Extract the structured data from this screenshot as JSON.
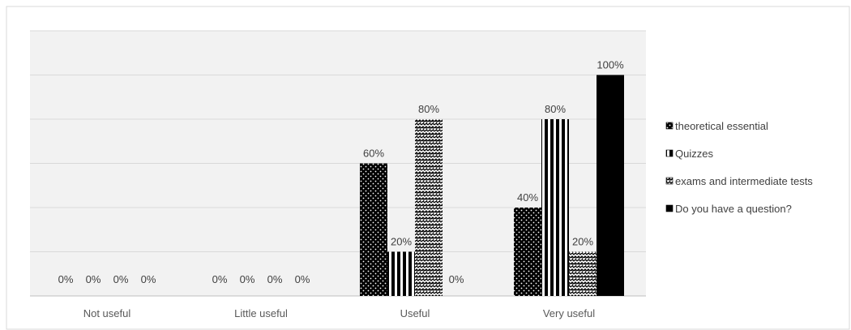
{
  "chart_data": {
    "type": "bar",
    "categories": [
      "Not useful",
      "Little useful",
      "Useful",
      "Very useful"
    ],
    "series": [
      {
        "name": "theoretical essential",
        "values": [
          0,
          0,
          60,
          40
        ],
        "labels": [
          "0%",
          "0%",
          "60%",
          "40%"
        ],
        "pattern": "dots"
      },
      {
        "name": "Quizzes",
        "values": [
          0,
          0,
          20,
          80
        ],
        "labels": [
          "0%",
          "0%",
          "20%",
          "80%"
        ],
        "pattern": "vstripes"
      },
      {
        "name": "exams and intermediate tests",
        "values": [
          0,
          0,
          80,
          20
        ],
        "labels": [
          "0%",
          "0%",
          "80%",
          "20%"
        ],
        "pattern": "zigzag"
      },
      {
        "name": "Do you have a question?",
        "values": [
          0,
          0,
          0,
          100
        ],
        "labels": [
          "0%",
          "0%",
          "0%",
          "100%"
        ],
        "pattern": "solid"
      }
    ],
    "ylim": [
      0,
      120
    ],
    "gridlines": true,
    "legend_position": "right",
    "plot_background": "#f2f2f2",
    "grid_color": "#d9d9d9",
    "bar_color": "#000000"
  }
}
